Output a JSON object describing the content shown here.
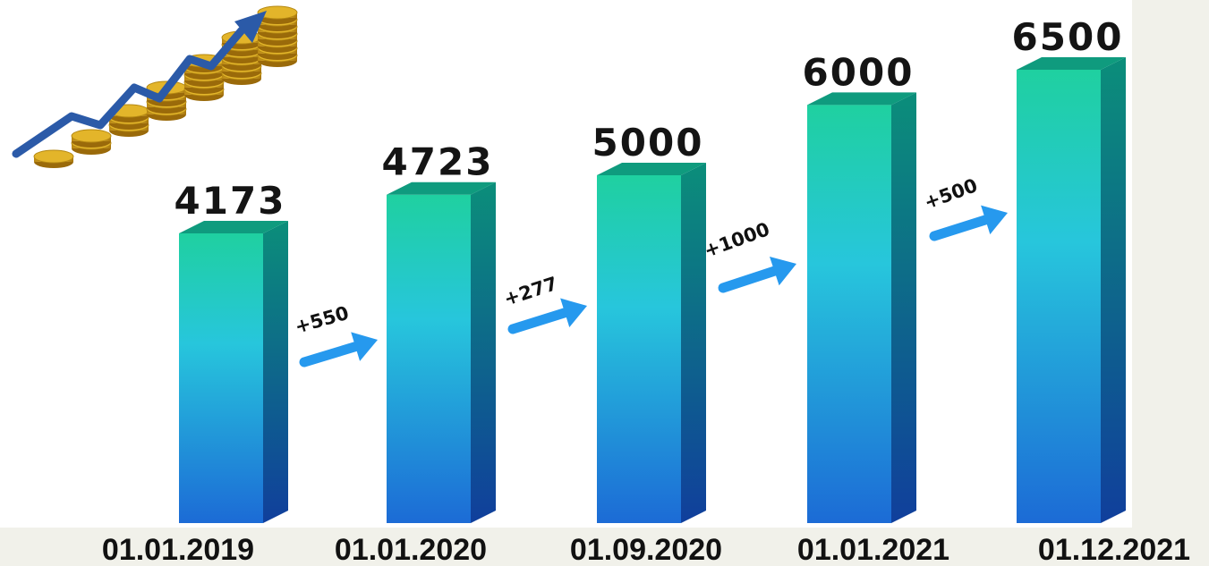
{
  "colors": {
    "background": "#f1f1ea",
    "panel": "#ffffff",
    "bar_top": "#1fd0a0",
    "bar_middle": "#27c6dc",
    "bar_bottom": "#1c6bd6",
    "bar_side_top": "#0b8e7a",
    "bar_side_bottom": "#103f9c",
    "bar_cap": "#0f9b7e",
    "arrow": "#2699ee",
    "coin": "#e3b52a",
    "trend_line": "#2b5aa8"
  },
  "decoration": {
    "icon": "growth-coins-icon"
  },
  "chart_data": {
    "type": "bar",
    "categories": [
      "01.01.2019",
      "01.01.2020",
      "01.09.2020",
      "01.01.2021",
      "01.12.2021"
    ],
    "values": [
      4173,
      4723,
      5000,
      6000,
      6500
    ],
    "value_labels": [
      "4173",
      "4723",
      "5000",
      "6000",
      "6500"
    ],
    "increments": [
      "+550",
      "+277",
      "+1000",
      "+500"
    ],
    "title": "",
    "xlabel": "",
    "ylabel": "",
    "grid": false,
    "legend": "none"
  }
}
